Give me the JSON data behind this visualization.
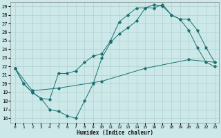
{
  "xlabel": "Humidex (Indice chaleur)",
  "background_color": "#cce8e8",
  "grid_color": "#b0d0d0",
  "line_color": "#1a7070",
  "xlim": [
    -0.5,
    23.5
  ],
  "ylim": [
    15.5,
    29.5
  ],
  "xticks": [
    0,
    1,
    2,
    3,
    4,
    5,
    6,
    7,
    8,
    9,
    10,
    11,
    12,
    13,
    14,
    15,
    16,
    17,
    18,
    19,
    20,
    21,
    22,
    23
  ],
  "yticks": [
    16,
    17,
    18,
    19,
    20,
    21,
    22,
    23,
    24,
    25,
    26,
    27,
    28,
    29
  ],
  "line1_x": [
    0,
    1,
    2,
    3,
    4,
    5,
    6,
    7,
    8,
    9,
    10,
    11,
    12,
    13,
    14,
    15,
    16,
    17,
    18,
    19,
    20,
    21,
    22,
    23
  ],
  "line1_y": [
    21.8,
    20.0,
    19.0,
    18.3,
    17.0,
    16.8,
    16.3,
    16.0,
    18.0,
    20.0,
    23.0,
    24.8,
    25.8,
    26.5,
    27.3,
    28.8,
    28.8,
    29.2,
    28.0,
    27.5,
    27.5,
    26.2,
    24.2,
    22.5
  ],
  "line2_x": [
    0,
    1,
    2,
    3,
    4,
    5,
    6,
    7,
    8,
    9,
    10,
    11,
    12,
    13,
    14,
    15,
    16,
    17,
    18,
    19,
    20,
    21,
    22,
    23
  ],
  "line2_y": [
    21.8,
    20.0,
    19.0,
    18.3,
    18.2,
    21.2,
    21.2,
    21.5,
    22.5,
    23.2,
    23.5,
    25.0,
    27.2,
    28.0,
    28.8,
    28.8,
    29.2,
    29.0,
    28.0,
    27.5,
    26.2,
    24.2,
    22.5,
    22.0
  ],
  "line3_x": [
    0,
    2,
    5,
    10,
    15,
    20,
    23
  ],
  "line3_y": [
    21.8,
    19.2,
    19.5,
    20.3,
    21.8,
    22.8,
    22.5
  ]
}
